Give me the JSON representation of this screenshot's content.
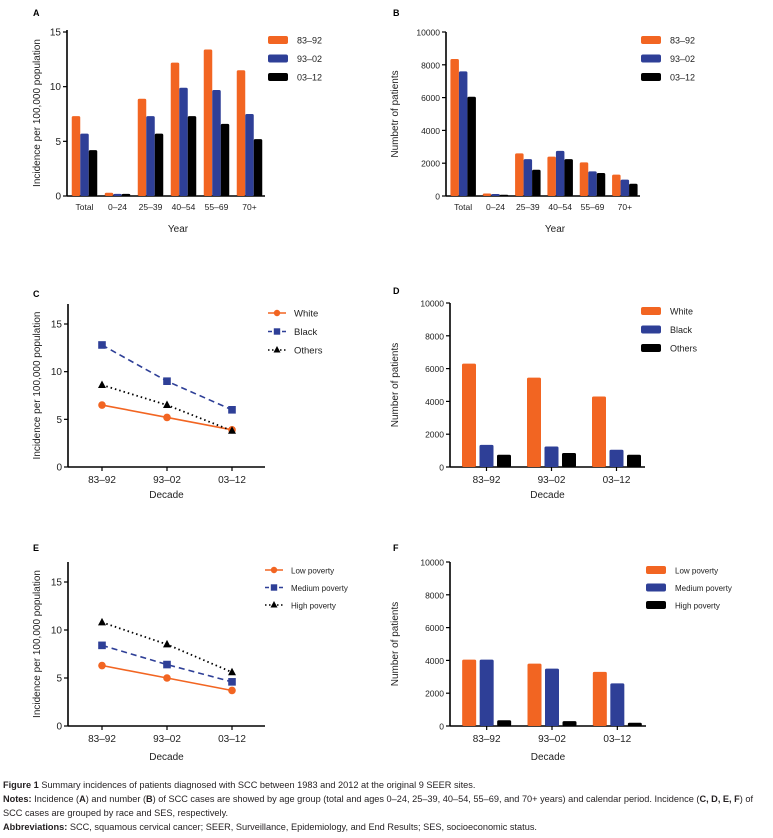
{
  "colors": {
    "orange": "#f26522",
    "blue": "#2e3f97",
    "black": "#000000",
    "axis": "#000000",
    "text": "#222222"
  },
  "chart_data": [
    {
      "panel": "A",
      "type": "bar",
      "title": "",
      "xlabel": "Year",
      "ylabel": "Incidence per 100,000 population",
      "categories": [
        "Total",
        "0–24",
        "25–39",
        "40–54",
        "55–69",
        "70+"
      ],
      "series": [
        {
          "name": "83–92",
          "color": "#f26522",
          "values": [
            7.3,
            0.3,
            8.9,
            12.2,
            13.4,
            11.5
          ]
        },
        {
          "name": "93–02",
          "color": "#2e3f97",
          "values": [
            5.7,
            0.2,
            7.3,
            9.9,
            9.7,
            7.5
          ]
        },
        {
          "name": "03–12",
          "color": "#000000",
          "values": [
            4.2,
            0.2,
            5.7,
            7.3,
            6.6,
            5.2
          ]
        }
      ],
      "ylim": [
        0,
        15
      ],
      "yticks": [
        "0",
        "5",
        "10",
        "15"
      ],
      "legend": "top-right",
      "grid": false
    },
    {
      "panel": "B",
      "type": "bar",
      "title": "",
      "xlabel": "Year",
      "ylabel": "Numbetr of patients",
      "categories": [
        "Total",
        "0–24",
        "25–39",
        "40–54",
        "55–69",
        "70+"
      ],
      "series": [
        {
          "name": "83–92",
          "color": "#f26522",
          "values": [
            8350,
            150,
            2600,
            2400,
            2050,
            1300
          ]
        },
        {
          "name": "93–02",
          "color": "#2e3f97",
          "values": [
            7600,
            120,
            2250,
            2750,
            1500,
            1000
          ]
        },
        {
          "name": "03–12",
          "color": "#000000",
          "values": [
            6050,
            80,
            1600,
            2250,
            1400,
            750
          ]
        }
      ],
      "ylim": [
        0,
        10000
      ],
      "yticks": [
        "0",
        "2000",
        "4000",
        "6000",
        "8000",
        "10000"
      ],
      "legend": "top-right",
      "grid": false
    },
    {
      "panel": "C",
      "type": "line",
      "title": "",
      "xlabel": "Decade",
      "ylabel": "Incidence per 100,000 population",
      "categories": [
        "83–92",
        "93–02",
        "03–12"
      ],
      "series": [
        {
          "name": "White",
          "color": "#f26522",
          "marker": "circle",
          "style": "solid",
          "values": [
            6.5,
            5.2,
            3.9
          ]
        },
        {
          "name": "Black",
          "color": "#2e3f97",
          "marker": "square",
          "style": "dashed",
          "values": [
            12.8,
            9.0,
            6.0
          ]
        },
        {
          "name": "Others",
          "color": "#000000",
          "marker": "triangle",
          "style": "dotted",
          "values": [
            8.6,
            6.5,
            3.8
          ]
        }
      ],
      "ylim": [
        0,
        17
      ],
      "yticks": [
        "0",
        "5",
        "10",
        "15"
      ],
      "legend": "top-right",
      "grid": false
    },
    {
      "panel": "D",
      "type": "bar",
      "title": "",
      "xlabel": "Decade",
      "ylabel": "Number of patients",
      "categories": [
        "83–92",
        "93–02",
        "03–12"
      ],
      "series": [
        {
          "name": "White",
          "color": "#f26522",
          "values": [
            6300,
            5450,
            4300
          ]
        },
        {
          "name": "Black",
          "color": "#2e3f97",
          "values": [
            1350,
            1250,
            1050
          ]
        },
        {
          "name": "Others",
          "color": "#000000",
          "values": [
            750,
            850,
            750
          ]
        }
      ],
      "ylim": [
        0,
        10000
      ],
      "yticks": [
        "0",
        "2000",
        "4000",
        "6000",
        "8000",
        "10000"
      ],
      "legend": "top-right",
      "grid": false
    },
    {
      "panel": "E",
      "type": "line",
      "title": "",
      "xlabel": "Decade",
      "ylabel": "Incidence per 100,000 population",
      "categories": [
        "83–92",
        "93–02",
        "03–12"
      ],
      "series": [
        {
          "name": "Low poverty",
          "color": "#f26522",
          "marker": "circle",
          "style": "solid",
          "values": [
            6.3,
            5.0,
            3.7
          ]
        },
        {
          "name": "Medium poverty",
          "color": "#2e3f97",
          "marker": "square",
          "style": "dashed",
          "values": [
            8.4,
            6.4,
            4.6
          ]
        },
        {
          "name": "High poverty",
          "color": "#000000",
          "marker": "triangle",
          "style": "dotted",
          "values": [
            10.8,
            8.5,
            5.6
          ]
        }
      ],
      "ylim": [
        0,
        17
      ],
      "yticks": [
        "0",
        "5",
        "10",
        "15"
      ],
      "legend": "top-right",
      "grid": false
    },
    {
      "panel": "F",
      "type": "bar",
      "title": "",
      "xlabel": "Decade",
      "ylabel": "Number of patients",
      "categories": [
        "83–92",
        "93–02",
        "03–12"
      ],
      "series": [
        {
          "name": "Low poverty",
          "color": "#f26522",
          "values": [
            4050,
            3800,
            3300
          ]
        },
        {
          "name": "Medium poverty",
          "color": "#2e3f97",
          "values": [
            4050,
            3500,
            2600
          ]
        },
        {
          "name": "High poverty",
          "color": "#000000",
          "values": [
            350,
            300,
            200
          ]
        }
      ],
      "ylim": [
        0,
        10000
      ],
      "yticks": [
        "0",
        "2000",
        "4000",
        "6000",
        "8000",
        "10000"
      ],
      "legend": "top-right",
      "grid": false
    }
  ],
  "caption": {
    "figure_label": "Figure 1",
    "figure_text": "Summary incidences of patients diagnosed with SCC between 1983 and 2012 at the original 9 SEER sites.",
    "notes_label": "Notes:",
    "notes_text_1": "Incidence (",
    "notes_A": "A",
    "notes_text_2": ") and number (",
    "notes_B": "B",
    "notes_text_3": ") of SCC cases are showed by age group (total and ages 0–24, 25–39, 40–54, 55–69, and 70+ years) and calendar period. Incidence (",
    "notes_CDEF": "C, D, E, F",
    "notes_text_4": ") of SCC cases are grouped by race and SES, respectively.",
    "abbrev_label": "Abbreviations:",
    "abbrev_text": "SCC, squamous cervical cancer; SEER, Surveillance, Epidemiology, and End Results; SES, socioeconomic status."
  }
}
